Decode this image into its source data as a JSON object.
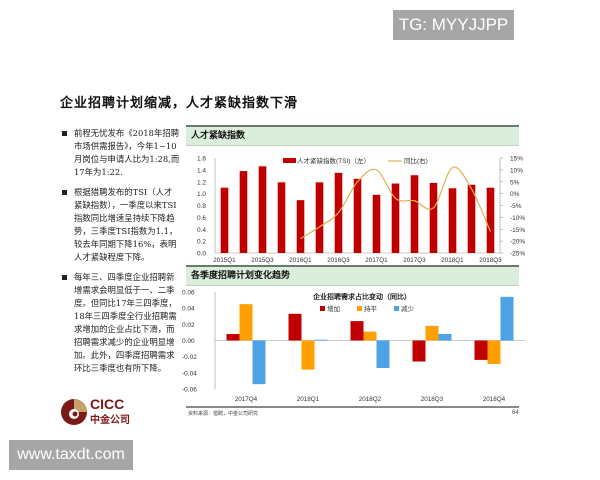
{
  "watermarks": {
    "top": "TG: MYYJJPP",
    "bottom": "www.taxdt.com"
  },
  "slide": {
    "title": "企业招聘计划缩减，人才紧缺指数下滑",
    "bullets": [
      "前程无忧发布《2018年招聘市场供需报告》，今年1~10月岗位与申请人比为1:28,而17年为1:22.",
      "根据猎聘发布的TSI（人才紧缺指数），一季度以来TSI指数同比增速呈持续下降趋势，三季度TSI指数为1.1，较去年同期下降16%，表明人才紧缺程度下降。",
      "每年三、四季度企业招聘新增需求会明显低于一、二季度。但同比17年三四季度，18年三四季度全行业招聘需求增加的企业占比下滑，而招聘需求减少的企业明显增加。此外，四季度招聘需求环比三季度也有所下降。"
    ],
    "panel1_title": "人才紧缺指数",
    "panel2_title": "各季度招聘计划变化趋势",
    "source": "资料来源：猎聘，中金公司研究",
    "page_number": "64",
    "logo": {
      "en": "CICC",
      "cn": "中金公司"
    }
  },
  "colors": {
    "bar_red": "#c00000",
    "line_gold": "#e0b050",
    "orange": "#ffa000",
    "blue": "#4ea3e6",
    "panel_green": "#dbeedb"
  },
  "chart_data": [
    {
      "type": "bar+line",
      "title": "人才紧缺指数",
      "categories": [
        "2015Q1",
        "2015Q2",
        "2015Q3",
        "2015Q4",
        "2016Q1",
        "2016Q2",
        "2016Q3",
        "2016Q4",
        "2017Q1",
        "2017Q2",
        "2017Q3",
        "2017Q4",
        "2018Q1",
        "2018Q2",
        "2018Q3"
      ],
      "x_tick_labels": [
        "2015Q1",
        "2015Q3",
        "2016Q1",
        "2016Q3",
        "2017Q1",
        "2017Q3",
        "2018Q1",
        "2018Q3"
      ],
      "series": [
        {
          "name": "人才紧缺指数(TSI)（左）",
          "type": "bar",
          "axis": "left",
          "values": [
            1.1,
            1.38,
            1.46,
            1.19,
            0.89,
            1.19,
            1.35,
            1.25,
            0.98,
            1.17,
            1.31,
            1.18,
            1.09,
            1.15,
            1.1
          ]
        },
        {
          "name": "同比(右)",
          "type": "line",
          "axis": "right",
          "values": [
            null,
            null,
            null,
            null,
            -19,
            -14,
            -8,
            5,
            10,
            -2,
            -3,
            -6,
            11,
            2,
            -16
          ]
        }
      ],
      "left_axis": {
        "ylim": [
          0,
          1.6
        ],
        "ticks": [
          "0.0",
          "0.2",
          "0.4",
          "0.6",
          "0.8",
          "1.0",
          "1.2",
          "1.4",
          "1.6"
        ]
      },
      "right_axis": {
        "ylim": [
          -25,
          15
        ],
        "ticks": [
          "-25%",
          "-20%",
          "-15%",
          "-10%",
          "-5%",
          "0%",
          "5%",
          "10%",
          "15%"
        ]
      },
      "legend_position": "top"
    },
    {
      "type": "bar",
      "title": "企业招聘需求占比变动（同比）",
      "categories": [
        "2017Q4",
        "2018Q1",
        "2018Q2",
        "2018Q3",
        "2018Q4"
      ],
      "series": [
        {
          "name": "增加",
          "values": [
            0.008,
            0.033,
            0.024,
            -0.026,
            -0.024
          ]
        },
        {
          "name": "持平",
          "values": [
            0.045,
            -0.036,
            0.011,
            0.018,
            -0.029
          ]
        },
        {
          "name": "减少",
          "values": [
            -0.054,
            0.001,
            -0.034,
            0.008,
            0.054
          ]
        }
      ],
      "ylim": [
        -0.06,
        0.06
      ],
      "y_ticks": [
        "0.06",
        "0.04",
        "0.02",
        "0.00",
        "-0.02",
        "-0.04",
        "-0.06"
      ],
      "legend_position": "top"
    }
  ]
}
